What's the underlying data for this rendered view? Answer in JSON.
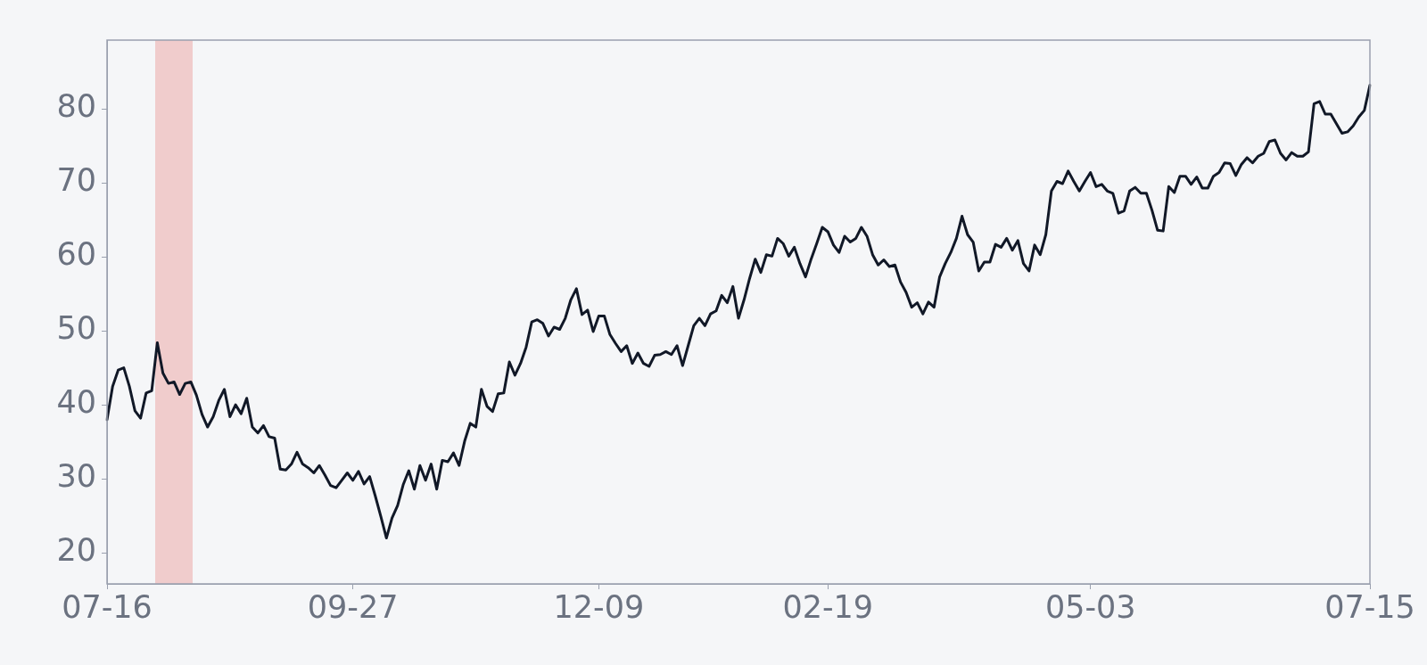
{
  "chart_data": {
    "type": "line",
    "categories": [
      "07-16",
      null,
      null,
      null,
      null,
      null,
      null,
      null,
      null,
      null,
      null,
      null,
      null,
      null,
      null,
      null,
      null,
      null,
      null,
      null,
      null,
      null,
      null,
      null,
      null,
      null,
      null,
      null,
      null,
      null,
      null,
      null,
      null,
      null,
      null,
      null,
      null,
      null,
      null,
      null,
      null,
      null,
      null,
      null,
      "09-27",
      null,
      null,
      null,
      null,
      null,
      null,
      null,
      null,
      null,
      null,
      null,
      null,
      null,
      null,
      null,
      null,
      null,
      null,
      null,
      null,
      null,
      null,
      null,
      null,
      null,
      null,
      null,
      null,
      null,
      null,
      null,
      null,
      null,
      null,
      null,
      null,
      null,
      null,
      null,
      null,
      null,
      null,
      null,
      "12-09",
      null,
      null,
      null,
      null,
      null,
      null,
      null,
      null,
      null,
      null,
      null,
      null,
      null,
      null,
      null,
      null,
      null,
      null,
      null,
      null,
      null,
      null,
      null,
      null,
      null,
      null,
      null,
      null,
      null,
      null,
      null,
      null,
      null,
      null,
      null,
      null,
      null,
      null,
      null,
      null,
      "02-19",
      null,
      null,
      null,
      null,
      null,
      null,
      null,
      null,
      null,
      null,
      null,
      null,
      null,
      null,
      null,
      null,
      null,
      null,
      null,
      null,
      null,
      null,
      null,
      null,
      null,
      null,
      null,
      null,
      null,
      null,
      null,
      null,
      null,
      null,
      null,
      null,
      null,
      null,
      null,
      null,
      null,
      null,
      null,
      null,
      null,
      null,
      "05-03",
      null,
      null,
      null,
      null,
      null,
      null,
      null,
      null,
      null,
      null,
      null,
      null,
      null,
      null,
      null,
      null,
      null,
      null,
      null,
      null,
      null,
      null,
      null,
      null,
      null,
      null,
      null,
      null,
      null,
      null,
      null,
      null,
      null,
      null,
      null,
      null,
      null,
      null,
      null,
      null,
      null,
      null,
      null,
      null,
      null,
      null,
      null,
      null,
      null,
      "07-15"
    ],
    "series": [
      {
        "color": "#111827",
        "values": [
          38.0,
          42.5,
          44.7,
          45.0,
          42.5,
          39.2,
          38.2,
          41.6,
          41.9,
          48.4,
          44.3,
          42.9,
          43.1,
          41.4,
          42.9,
          43.1,
          41.3,
          38.7,
          37.0,
          38.4,
          40.6,
          42.1,
          38.4,
          40.0,
          38.8,
          40.9,
          37.0,
          36.2,
          37.2,
          35.7,
          35.5,
          31.3,
          31.2,
          32.0,
          33.6,
          32.0,
          31.5,
          30.8,
          31.8,
          30.5,
          29.1,
          28.8,
          29.8,
          30.8,
          29.8,
          31.0,
          29.3,
          30.3,
          27.7,
          24.9,
          22.0,
          24.7,
          26.4,
          29.2,
          31.1,
          28.6,
          31.8,
          29.8,
          32.0,
          28.6,
          32.5,
          32.3,
          33.5,
          31.8,
          35.1,
          37.5,
          37.0,
          42.1,
          39.8,
          39.1,
          41.5,
          41.6,
          45.8,
          44.0,
          45.6,
          47.8,
          51.2,
          51.5,
          51.0,
          49.3,
          50.5,
          50.2,
          51.7,
          54.2,
          55.7,
          52.2,
          52.8,
          49.9,
          52.0,
          52.0,
          49.5,
          48.3,
          47.2,
          48.0,
          45.6,
          47.0,
          45.6,
          45.2,
          46.7,
          46.8,
          47.2,
          46.8,
          48.0,
          45.3,
          48.0,
          50.7,
          51.7,
          50.7,
          52.3,
          52.7,
          54.8,
          53.8,
          56.0,
          51.7,
          54.2,
          57.1,
          59.7,
          57.9,
          60.3,
          60.1,
          62.5,
          61.8,
          60.1,
          61.3,
          59.1,
          57.3,
          59.7,
          61.8,
          64.0,
          63.4,
          61.6,
          60.6,
          62.8,
          62.0,
          62.5,
          64.0,
          62.8,
          60.3,
          58.9,
          59.6,
          58.7,
          58.9,
          56.6,
          55.2,
          53.2,
          53.8,
          52.3,
          53.9,
          53.2,
          57.3,
          59.1,
          60.6,
          62.5,
          65.5,
          63.0,
          62.0,
          58.1,
          59.3,
          59.3,
          61.7,
          61.3,
          62.5,
          60.9,
          62.2,
          59.1,
          58.1,
          61.6,
          60.3,
          63.0,
          68.9,
          70.2,
          69.9,
          71.6,
          70.2,
          68.9,
          70.2,
          71.4,
          69.5,
          69.8,
          68.9,
          68.6,
          65.9,
          66.2,
          68.9,
          69.4,
          68.6,
          68.6,
          66.3,
          63.6,
          63.5,
          69.5,
          68.7,
          70.9,
          70.9,
          69.8,
          70.8,
          69.3,
          69.3,
          70.9,
          71.4,
          72.7,
          72.6,
          71.0,
          72.5,
          73.4,
          72.7,
          73.6,
          74.0,
          75.6,
          75.8,
          74.0,
          73.1,
          74.1,
          73.6,
          73.6,
          74.2,
          80.7,
          81.0,
          79.3,
          79.3,
          78.0,
          76.7,
          76.9,
          77.7,
          78.9,
          79.8,
          83.2
        ]
      }
    ],
    "ylim": [
      15.8,
      89.3
    ],
    "yticks": [
      20,
      30,
      40,
      50,
      60,
      70,
      80
    ],
    "marker": "none",
    "line_style": "solid",
    "legend": false,
    "grid": false
  }
}
